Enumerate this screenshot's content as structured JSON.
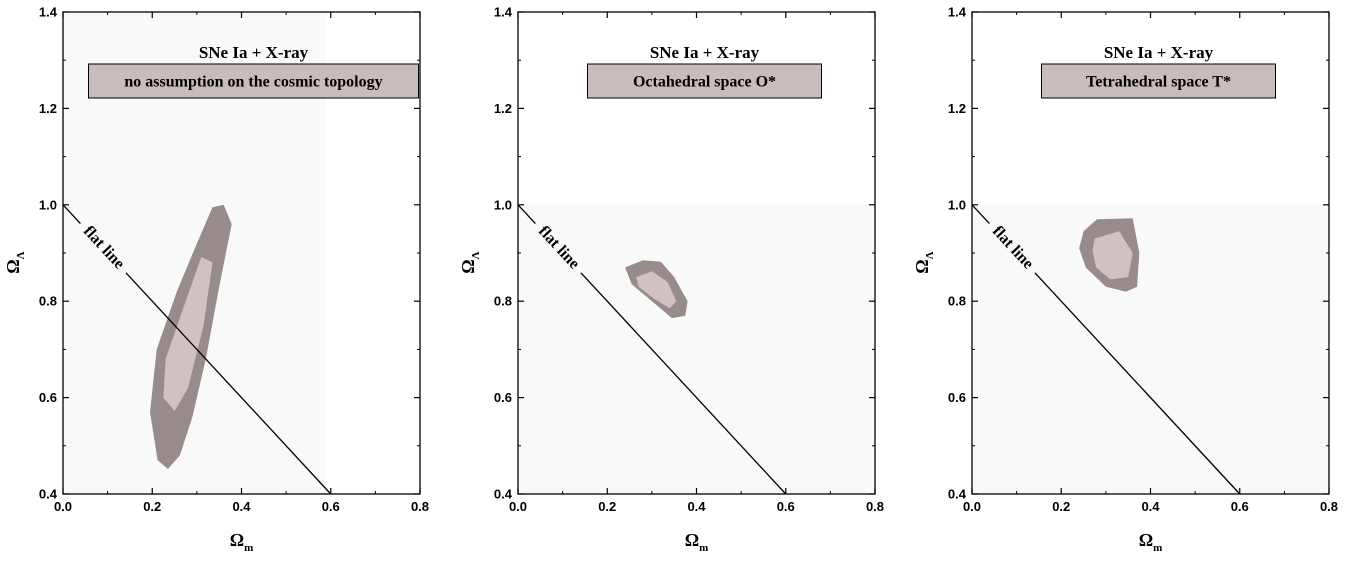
{
  "chart_data": [
    {
      "type": "contour",
      "title": "SNe Ia + X-ray",
      "subtitle": "no assumption on the cosmic topology",
      "xlabel": "Ω",
      "xlabel_sub": "m",
      "ylabel": "Ω",
      "ylabel_sub": "Λ",
      "xlim": [
        0.0,
        0.8
      ],
      "ylim": [
        0.4,
        1.4
      ],
      "xticks": [
        "0.0",
        "0.2",
        "0.4",
        "0.6",
        "0.8"
      ],
      "yticks": [
        "0.4",
        "0.6",
        "0.8",
        "1.0",
        "1.2",
        "1.4"
      ],
      "allowed_region": {
        "x": [
          0.0,
          0.59
        ],
        "y": [
          0.4,
          1.4
        ]
      },
      "flat_line": {
        "label": "flat line",
        "points": [
          [
            0.0,
            1.0
          ],
          [
            0.6,
            0.4
          ]
        ]
      },
      "contours": [
        {
          "level": "outer",
          "color": "#978b8b",
          "points": [
            [
              0.235,
              0.452
            ],
            [
              0.262,
              0.48
            ],
            [
              0.29,
              0.56
            ],
            [
              0.32,
              0.68
            ],
            [
              0.35,
              0.83
            ],
            [
              0.378,
              0.96
            ],
            [
              0.36,
              1.0
            ],
            [
              0.335,
              0.995
            ],
            [
              0.3,
              0.92
            ],
            [
              0.255,
              0.82
            ],
            [
              0.21,
              0.7
            ],
            [
              0.195,
              0.57
            ],
            [
              0.212,
              0.47
            ]
          ]
        },
        {
          "level": "inner",
          "color": "#cfc2c2",
          "points": [
            [
              0.25,
              0.572
            ],
            [
              0.28,
              0.62
            ],
            [
              0.315,
              0.75
            ],
            [
              0.335,
              0.88
            ],
            [
              0.31,
              0.892
            ],
            [
              0.275,
              0.8
            ],
            [
              0.23,
              0.68
            ],
            [
              0.225,
              0.6
            ]
          ]
        }
      ]
    },
    {
      "type": "contour",
      "title": "SNe Ia + X-ray",
      "subtitle": "Octahedral space O*",
      "xlabel": "Ω",
      "xlabel_sub": "m",
      "ylabel": "Ω",
      "ylabel_sub": "Λ",
      "xlim": [
        0.0,
        0.8
      ],
      "ylim": [
        0.4,
        1.4
      ],
      "xticks": [
        "0.0",
        "0.2",
        "0.4",
        "0.6",
        "0.8"
      ],
      "yticks": [
        "0.4",
        "0.6",
        "0.8",
        "1.0",
        "1.2",
        "1.4"
      ],
      "allowed_region": {
        "x": [
          0.0,
          0.8
        ],
        "y": [
          0.4,
          1.0
        ]
      },
      "flat_line": {
        "label": "flat line",
        "points": [
          [
            0.0,
            1.0
          ],
          [
            0.6,
            0.4
          ]
        ]
      },
      "contours": [
        {
          "level": "outer",
          "color": "#978b8b",
          "points": [
            [
              0.24,
              0.87
            ],
            [
              0.28,
              0.885
            ],
            [
              0.32,
              0.882
            ],
            [
              0.35,
              0.85
            ],
            [
              0.38,
              0.8
            ],
            [
              0.375,
              0.77
            ],
            [
              0.345,
              0.765
            ],
            [
              0.3,
              0.8
            ],
            [
              0.255,
              0.835
            ]
          ]
        },
        {
          "level": "inner",
          "color": "#cfc2c2",
          "points": [
            [
              0.265,
              0.85
            ],
            [
              0.3,
              0.862
            ],
            [
              0.335,
              0.84
            ],
            [
              0.355,
              0.8
            ],
            [
              0.34,
              0.785
            ],
            [
              0.305,
              0.805
            ],
            [
              0.27,
              0.83
            ]
          ]
        }
      ]
    },
    {
      "type": "contour",
      "title": "SNe Ia + X-ray",
      "subtitle": "Tetrahedral space T*",
      "xlabel": "Ω",
      "xlabel_sub": "m",
      "ylabel": "Ω",
      "ylabel_sub": "Λ",
      "xlim": [
        0.0,
        0.8
      ],
      "ylim": [
        0.4,
        1.4
      ],
      "xticks": [
        "0.0",
        "0.2",
        "0.4",
        "0.6",
        "0.8"
      ],
      "yticks": [
        "0.4",
        "0.6",
        "0.8",
        "1.0",
        "1.2",
        "1.4"
      ],
      "allowed_region": {
        "x": [
          0.0,
          0.8
        ],
        "y": [
          0.4,
          1.0
        ]
      },
      "flat_line": {
        "label": "flat line",
        "points": [
          [
            0.0,
            1.0
          ],
          [
            0.6,
            0.4
          ]
        ]
      },
      "contours": [
        {
          "level": "outer",
          "color": "#978b8b",
          "points": [
            [
              0.25,
              0.945
            ],
            [
              0.28,
              0.97
            ],
            [
              0.36,
              0.972
            ],
            [
              0.375,
              0.9
            ],
            [
              0.37,
              0.83
            ],
            [
              0.345,
              0.82
            ],
            [
              0.3,
              0.83
            ],
            [
              0.255,
              0.87
            ],
            [
              0.24,
              0.91
            ]
          ]
        },
        {
          "level": "inner",
          "color": "#cfc2c2",
          "points": [
            [
              0.275,
              0.93
            ],
            [
              0.33,
              0.945
            ],
            [
              0.36,
              0.9
            ],
            [
              0.35,
              0.85
            ],
            [
              0.31,
              0.845
            ],
            [
              0.278,
              0.87
            ],
            [
              0.27,
              0.905
            ]
          ]
        }
      ]
    }
  ]
}
